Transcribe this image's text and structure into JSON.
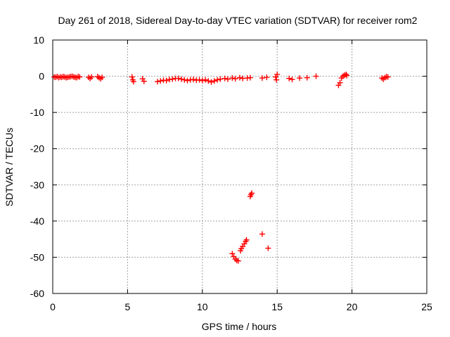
{
  "chart_data": {
    "type": "scatter",
    "title": "Day 261 of 2018, Sidereal Day-to-day VTEC variation (SDTVAR) for receiver rom2",
    "xlabel": "GPS time / hours",
    "ylabel": "SDTVAR / TECUs",
    "xlim": [
      0,
      25
    ],
    "ylim": [
      -60,
      10
    ],
    "xticks": [
      0,
      5,
      10,
      15,
      20,
      25
    ],
    "yticks": [
      -60,
      -50,
      -40,
      -30,
      -20,
      -10,
      0,
      10
    ],
    "xtick_labels": [
      "0",
      "5",
      "10",
      "15",
      "20",
      "25"
    ],
    "ytick_labels": [
      "-60",
      "-50",
      "-40",
      "-30",
      "-20",
      "-10",
      "0",
      "10"
    ],
    "grid": true,
    "marker": "+",
    "color": "#ff0000",
    "series": [
      {
        "name": "rom2",
        "points": [
          [
            0.1,
            -0.2
          ],
          [
            0.2,
            -0.3
          ],
          [
            0.3,
            -0.1
          ],
          [
            0.4,
            -0.4
          ],
          [
            0.5,
            -0.2
          ],
          [
            0.6,
            -0.3
          ],
          [
            0.7,
            -0.1
          ],
          [
            0.8,
            -0.2
          ],
          [
            0.9,
            -0.4
          ],
          [
            1.0,
            -0.3
          ],
          [
            1.1,
            -0.2
          ],
          [
            1.2,
            -0.1
          ],
          [
            1.3,
            0.0
          ],
          [
            1.4,
            -0.2
          ],
          [
            1.5,
            -0.3
          ],
          [
            1.6,
            -0.4
          ],
          [
            1.7,
            -0.1
          ],
          [
            1.8,
            -0.2
          ],
          [
            2.4,
            -0.3
          ],
          [
            2.5,
            -0.6
          ],
          [
            2.6,
            -0.2
          ],
          [
            3.0,
            -0.1
          ],
          [
            3.1,
            -0.4
          ],
          [
            3.2,
            -0.7
          ],
          [
            3.3,
            -0.3
          ],
          [
            5.3,
            -0.2
          ],
          [
            5.35,
            -1.0
          ],
          [
            5.4,
            -1.5
          ],
          [
            6.0,
            -0.7
          ],
          [
            6.1,
            -1.4
          ],
          [
            7.0,
            -1.5
          ],
          [
            7.2,
            -1.3
          ],
          [
            7.4,
            -1.1
          ],
          [
            7.6,
            -1.2
          ],
          [
            7.8,
            -0.9
          ],
          [
            8.0,
            -0.8
          ],
          [
            8.2,
            -0.6
          ],
          [
            8.4,
            -0.6
          ],
          [
            8.6,
            -0.8
          ],
          [
            8.8,
            -1.0
          ],
          [
            9.0,
            -1.2
          ],
          [
            9.2,
            -1.0
          ],
          [
            9.4,
            -0.9
          ],
          [
            9.6,
            -1.1
          ],
          [
            9.8,
            -1.0
          ],
          [
            10.0,
            -1.2
          ],
          [
            10.2,
            -1.0
          ],
          [
            10.4,
            -1.3
          ],
          [
            10.6,
            -1.6
          ],
          [
            10.8,
            -1.3
          ],
          [
            11.0,
            -1.0
          ],
          [
            11.2,
            -0.8
          ],
          [
            11.5,
            -0.6
          ],
          [
            11.7,
            -0.8
          ],
          [
            12.0,
            -0.5
          ],
          [
            12.2,
            -0.7
          ],
          [
            12.5,
            -0.4
          ],
          [
            12.7,
            -0.6
          ],
          [
            13.0,
            -0.5
          ],
          [
            13.2,
            -0.4
          ],
          [
            14.0,
            -0.5
          ],
          [
            14.3,
            -0.3
          ],
          [
            14.9,
            -0.2
          ],
          [
            14.95,
            -1.0
          ],
          [
            15.0,
            0.5
          ],
          [
            15.8,
            -0.6
          ],
          [
            16.0,
            -0.9
          ],
          [
            16.5,
            -0.5
          ],
          [
            17.0,
            -0.4
          ],
          [
            17.6,
            0.0
          ],
          [
            19.1,
            -2.5
          ],
          [
            19.2,
            -1.8
          ],
          [
            19.3,
            -0.5
          ],
          [
            19.4,
            0.0
          ],
          [
            19.5,
            0.3
          ],
          [
            19.6,
            0.5
          ],
          [
            19.65,
            0.2
          ],
          [
            22.0,
            -0.5
          ],
          [
            22.1,
            -0.8
          ],
          [
            22.2,
            -0.4
          ],
          [
            22.3,
            -0.1
          ],
          [
            22.4,
            -0.2
          ],
          [
            12.0,
            -49.0
          ],
          [
            12.1,
            -49.8
          ],
          [
            12.2,
            -50.5
          ],
          [
            12.3,
            -50.9
          ],
          [
            12.4,
            -51.0
          ],
          [
            12.55,
            -48.2
          ],
          [
            12.6,
            -47.6
          ],
          [
            12.7,
            -47.0
          ],
          [
            12.8,
            -46.3
          ],
          [
            12.9,
            -45.6
          ],
          [
            12.95,
            -45.2
          ],
          [
            13.2,
            -33.2
          ],
          [
            13.25,
            -32.7
          ],
          [
            13.3,
            -32.3
          ],
          [
            14.0,
            -43.6
          ],
          [
            14.4,
            -47.5
          ]
        ]
      }
    ]
  }
}
